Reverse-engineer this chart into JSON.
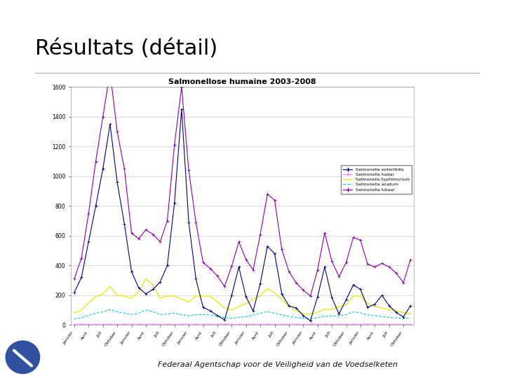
{
  "title_slide": "Résultats (détail)",
  "chart_title": "Salmonellose humaine 2003-2008",
  "footer": "Federaal Agentschap voor de Veiligheid van de Voedselketen",
  "ylim": [
    0,
    1600
  ],
  "yticks": [
    0,
    200,
    400,
    600,
    800,
    1000,
    1200,
    1400,
    1600
  ],
  "slide_bg": "#ffffff",
  "chart_area_bg": "#e8e8e8",
  "chart_bg": "#ffffff",
  "title_fontsize": 22,
  "chart_title_fontsize": 8,
  "footer_fontsize": 8,
  "footer_bg": "#b0b0b0",
  "x_labels": [
    "Janvier",
    "Avril",
    "Juli",
    "Oktober",
    "Janvier",
    "Avril",
    "Juli",
    "Oktober",
    "Janvier",
    "Avril",
    "Juli",
    "Oktober",
    "Janvier",
    "Avril",
    "Juli",
    "Oktober",
    "Janvier",
    "Avril",
    "Juli",
    "Oktober",
    "Janvier",
    "Avril",
    "Juli",
    "Oktober"
  ],
  "enteritidis_color": "#000080",
  "hadar_color": "#ff88ff",
  "typhimurium_color": "#e8e800",
  "anatum_color": "#00cccc",
  "totaal_color": "#8800aa",
  "enteritidis": [
    220,
    320,
    560,
    800,
    1050,
    1350,
    960,
    680,
    360,
    250,
    210,
    240,
    290,
    400,
    820,
    1450,
    690,
    310,
    120,
    95,
    65,
    35,
    200,
    390,
    190,
    95,
    280,
    530,
    480,
    210,
    130,
    115,
    65,
    28,
    190,
    390,
    185,
    75,
    170,
    270,
    240,
    120,
    140,
    200,
    130,
    85,
    55,
    130
  ],
  "hadar": [
    5,
    5,
    5,
    5,
    5,
    5,
    5,
    5,
    5,
    5,
    5,
    5,
    5,
    5,
    5,
    5,
    5,
    5,
    5,
    5,
    5,
    5,
    5,
    5,
    5,
    5,
    5,
    5,
    5,
    5,
    5,
    5,
    5,
    5,
    5,
    5,
    5,
    5,
    5,
    5,
    5,
    5,
    5,
    5,
    5,
    5,
    5,
    5
  ],
  "typhimurium": [
    80,
    100,
    150,
    190,
    210,
    260,
    200,
    195,
    180,
    225,
    310,
    270,
    180,
    195,
    195,
    175,
    155,
    195,
    195,
    195,
    155,
    115,
    100,
    125,
    145,
    175,
    195,
    245,
    215,
    175,
    125,
    95,
    75,
    75,
    85,
    105,
    105,
    125,
    135,
    195,
    195,
    145,
    125,
    115,
    105,
    95,
    85,
    75
  ],
  "anatum": [
    40,
    50,
    65,
    80,
    90,
    105,
    90,
    80,
    70,
    80,
    100,
    90,
    70,
    75,
    80,
    70,
    62,
    70,
    70,
    68,
    60,
    50,
    45,
    52,
    55,
    68,
    80,
    90,
    80,
    68,
    58,
    50,
    45,
    42,
    50,
    60,
    60,
    62,
    70,
    88,
    82,
    68,
    62,
    58,
    52,
    48,
    43,
    48
  ],
  "totaal": [
    310,
    450,
    750,
    1100,
    1400,
    1700,
    1300,
    1050,
    620,
    580,
    640,
    610,
    560,
    700,
    1210,
    1600,
    1040,
    690,
    420,
    380,
    330,
    260,
    395,
    560,
    440,
    370,
    610,
    880,
    840,
    510,
    360,
    285,
    235,
    195,
    370,
    620,
    430,
    325,
    420,
    590,
    570,
    410,
    390,
    415,
    390,
    350,
    285,
    440
  ]
}
